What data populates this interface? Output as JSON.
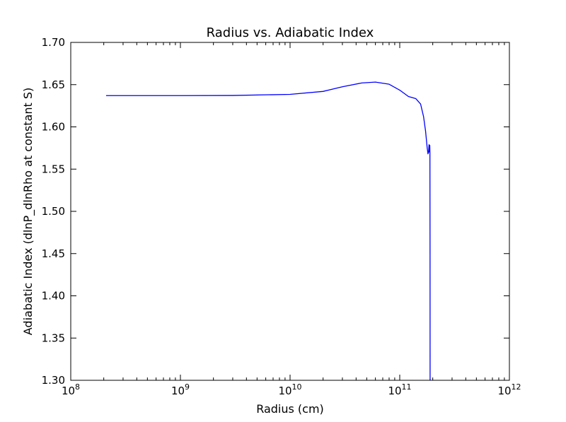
{
  "chart_data": {
    "type": "line",
    "title": "Radius vs. Adiabatic Index",
    "xlabel": "Radius (cm)",
    "ylabel": "Adiabatic Index (dlnP_dlnRho  at  constant  S)",
    "xscale": "log",
    "xlim": [
      100000000,
      1000000000000
    ],
    "ylim": [
      1.3,
      1.7
    ],
    "grid": false,
    "x_ticks": [
      {
        "base": "10",
        "exp": "8"
      },
      {
        "base": "10",
        "exp": "9"
      },
      {
        "base": "10",
        "exp": "10"
      },
      {
        "base": "10",
        "exp": "11"
      },
      {
        "base": "10",
        "exp": "12"
      }
    ],
    "y_ticks": [
      "1.30",
      "1.35",
      "1.40",
      "1.45",
      "1.50",
      "1.55",
      "1.60",
      "1.65",
      "1.70"
    ],
    "series": [
      {
        "color": "#0000ff",
        "x": [
          210000000,
          500000000,
          1000000000,
          3000000000,
          10000000000,
          20000000000,
          30000000000,
          45000000000,
          60000000000,
          80000000000,
          100000000000,
          120000000000,
          140000000000,
          155000000000,
          165000000000,
          172000000000,
          178000000000,
          181000000000,
          183000000000,
          184000000000,
          185000000000,
          186000000000,
          187000000000,
          188000000000,
          188500000000,
          189000000000,
          189200000000
        ],
        "y": [
          1.637,
          1.637,
          1.637,
          1.6372,
          1.6385,
          1.642,
          1.6475,
          1.652,
          1.653,
          1.6505,
          1.6435,
          1.636,
          1.6335,
          1.627,
          1.612,
          1.595,
          1.575,
          1.568,
          1.57,
          1.574,
          1.579,
          1.577,
          1.57,
          1.578,
          1.57,
          1.45,
          1.3
        ]
      }
    ]
  }
}
